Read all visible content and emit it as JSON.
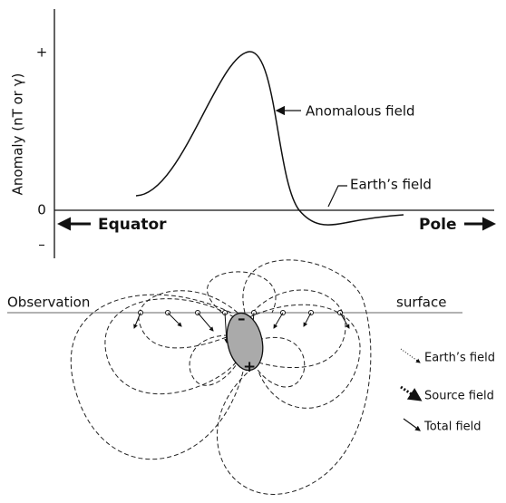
{
  "graph": {
    "y_axis_label": "Anomaly  (nT or γ)",
    "y_ticks": [
      "+",
      "0",
      "–"
    ],
    "annotations": [
      "Anomalous field",
      "Earth’s field"
    ],
    "direction_left": "Equator",
    "direction_right": "Pole"
  },
  "cross_section": {
    "surface_labels": [
      "Observation",
      "surface"
    ],
    "body_poles": [
      "–",
      "+"
    ]
  },
  "legend": [
    "Earth’s field",
    "Source field",
    "Total field"
  ]
}
